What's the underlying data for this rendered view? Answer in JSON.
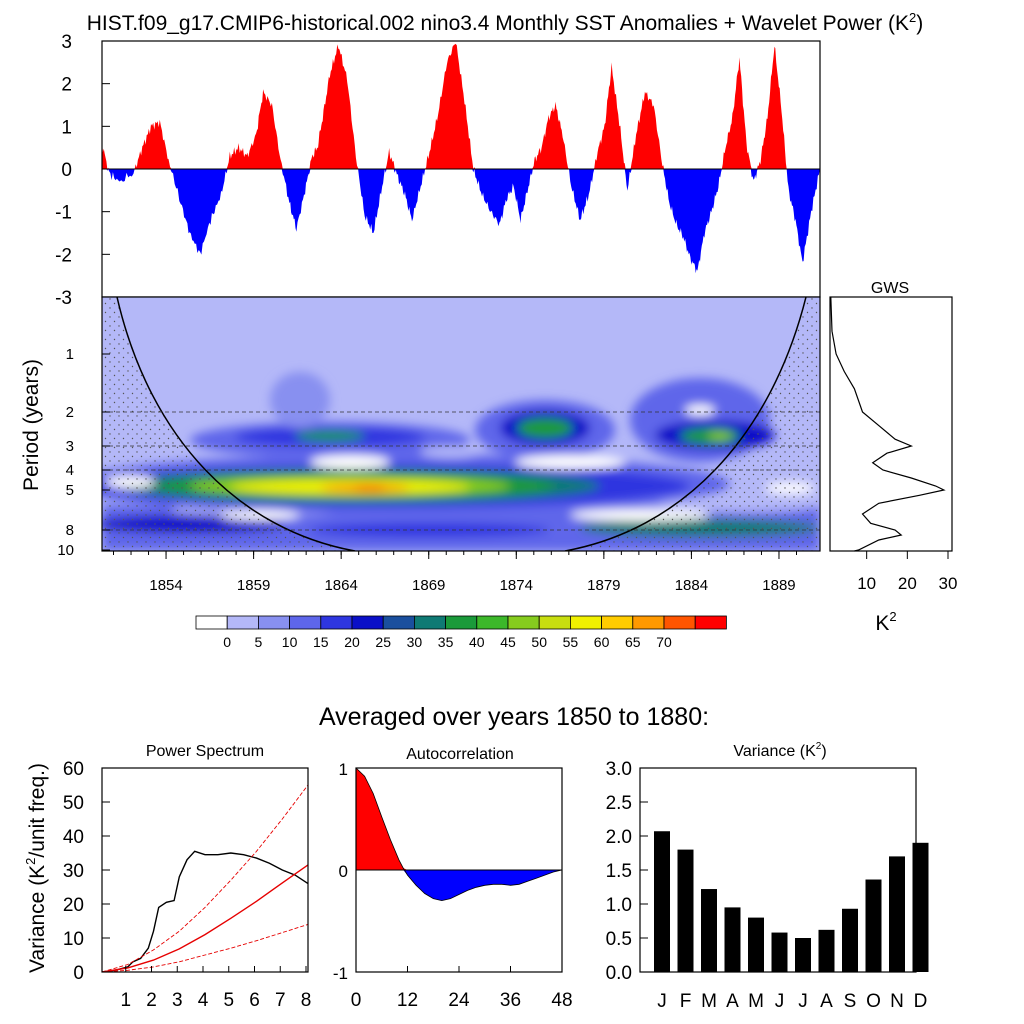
{
  "title": "HIST.f09_g17.CMIP6-historical.002 nino3.4 Monthly SST Anomalies + Wavelet Power (K",
  "title_sup": "2",
  "title_end": ")",
  "colors": {
    "positive": "#ff0000",
    "negative": "#0000ff",
    "bars": "#000000",
    "red_line": "#e60000"
  },
  "chart_data": [
    {
      "id": "sst_anomaly",
      "type": "area",
      "description_series": "nino3.4 monthly SST anomalies (K)",
      "ylim": [
        -3,
        3
      ],
      "xlim": [
        1850,
        1891
      ],
      "yticks": [
        3,
        2,
        1,
        0,
        -1,
        -2,
        -3
      ],
      "x": [
        1850,
        1850.4,
        1851,
        1851.8,
        1852.3,
        1852.8,
        1853.3,
        1853.8,
        1854.5,
        1855,
        1855.6,
        1856.2,
        1856.8,
        1857.3,
        1857.8,
        1858.3,
        1858.8,
        1859.2,
        1859.7,
        1860.2,
        1860.7,
        1861.1,
        1861.6,
        1862.0,
        1862.3,
        1862.6,
        1863.0,
        1863.5,
        1864.0,
        1864.5,
        1865.0,
        1865.5,
        1866.0,
        1866.4,
        1866.9,
        1867.3,
        1867.7,
        1868.2,
        1868.7,
        1869.2,
        1869.7,
        1870.2,
        1870.7,
        1871.2,
        1871.7,
        1872.2,
        1872.7,
        1873.1,
        1873.5,
        1873.9,
        1874.3,
        1874.7,
        1875.1,
        1875.5,
        1875.9,
        1876.3,
        1876.8,
        1877.3,
        1877.8,
        1878.3,
        1878.7,
        1879.1,
        1879.6,
        1880.0,
        1880.5,
        1881.0,
        1881.5,
        1882.0,
        1882.4,
        1882.8,
        1883.2,
        1883.6,
        1884.0,
        1884.4,
        1884.8,
        1885.2,
        1885.6,
        1886.0,
        1886.4,
        1886.8,
        1887.2,
        1887.6,
        1888.0,
        1888.4,
        1888.8,
        1889.2,
        1889.6,
        1890.0,
        1890.5,
        1891
      ],
      "values": [
        0.6,
        -0.1,
        -0.3,
        -0.1,
        0.5,
        1.0,
        1.1,
        0.2,
        -0.8,
        -1.5,
        -2.0,
        -1.2,
        -0.6,
        0.3,
        0.5,
        0.3,
        0.8,
        1.8,
        1.5,
        0.2,
        -0.8,
        -1.4,
        -0.5,
        0.3,
        0.5,
        1.2,
        2.2,
        2.9,
        2.1,
        0.3,
        -1.1,
        -1.5,
        -0.4,
        0.4,
        -0.2,
        -0.6,
        -1.2,
        -0.4,
        0.4,
        1.3,
        2.5,
        3.0,
        1.6,
        0.0,
        -0.6,
        -1.0,
        -1.3,
        -0.7,
        -0.4,
        -1.2,
        -0.5,
        0.2,
        0.5,
        1.2,
        1.5,
        0.8,
        -0.4,
        -1.2,
        -0.6,
        0.4,
        1.0,
        2.4,
        0.9,
        -0.5,
        0.8,
        1.8,
        1.5,
        0.1,
        -0.8,
        -1.3,
        -1.6,
        -2.1,
        -2.4,
        -1.5,
        -1.0,
        -0.4,
        0.5,
        1.2,
        2.6,
        0.6,
        -0.3,
        0.2,
        1.2,
        2.9,
        1.4,
        -0.5,
        -1.2,
        -2.2,
        -1.0,
        0.0
      ]
    },
    {
      "id": "wavelet_power",
      "type": "heatmap",
      "ylabel": "Period (years)",
      "yticks": [
        1,
        2,
        3,
        4,
        5,
        8,
        10
      ],
      "xticks": [
        1854,
        1859,
        1864,
        1869,
        1874,
        1879,
        1884,
        1889
      ],
      "xlim": [
        1850,
        1891
      ],
      "ylim_period": [
        0.5,
        10.5
      ],
      "colorbar_ticks": [
        0,
        5,
        10,
        15,
        20,
        25,
        30,
        35,
        40,
        45,
        50,
        55,
        60,
        65,
        70
      ],
      "colorbar_colors": [
        "#ffffff",
        "#b4b8f8",
        "#8890f0",
        "#5e66ea",
        "#2e36e0",
        "#0a10c8",
        "#1a4f9e",
        "#0f7a74",
        "#1a9a3a",
        "#3cb82a",
        "#86cc1e",
        "#c8de10",
        "#f0f000",
        "#ffcc00",
        "#ff9900",
        "#ff5500",
        "#ff0000"
      ],
      "peak_power": 70,
      "peak_period": 5,
      "peak_year": 1864
    },
    {
      "id": "gws",
      "type": "line",
      "title": "GWS",
      "xlabel": "K",
      "xlabel_sup": "2",
      "xticks": [
        10,
        20,
        30
      ],
      "xlim": [
        0,
        30
      ],
      "period": [
        0.5,
        0.8,
        1.0,
        1.3,
        1.6,
        2.0,
        2.4,
        2.8,
        3.0,
        3.3,
        3.7,
        4.0,
        4.4,
        4.8,
        5.0,
        5.4,
        6.0,
        6.8,
        7.5,
        8.0,
        8.5,
        9.0,
        10.0,
        10.5
      ],
      "values": [
        0.2,
        0.5,
        1.5,
        3.5,
        6.0,
        8.0,
        12.0,
        16.0,
        20.0,
        14.0,
        10.5,
        13.0,
        20.0,
        26.0,
        28.0,
        22.0,
        12.0,
        8.0,
        10.0,
        16.0,
        17.5,
        12.0,
        7.0,
        6.0
      ]
    },
    {
      "id": "power_spectrum",
      "type": "line",
      "title": "Power Spectrum",
      "ylabel": "Variance (K",
      "ylabel_sup": "2",
      "ylabel_end": "/unit freq.)",
      "xticks": [
        1,
        2,
        3,
        4,
        5,
        6,
        7,
        8
      ],
      "yticks": [
        0,
        10,
        20,
        30,
        40,
        50,
        60
      ],
      "xlim": [
        0,
        8
      ],
      "ylim": [
        0,
        60
      ],
      "series": [
        {
          "name": "spectrum",
          "color": "#000000",
          "x": [
            0.0,
            0.5,
            1.0,
            1.2,
            1.5,
            1.8,
            2.0,
            2.2,
            2.5,
            2.8,
            3.0,
            3.3,
            3.6,
            4.0,
            4.5,
            5.0,
            5.5,
            6.0,
            6.5,
            7.0,
            7.5,
            8.0
          ],
          "values": [
            0.0,
            0.5,
            1.5,
            3.0,
            4.0,
            7.0,
            12.0,
            19.0,
            20.5,
            21.0,
            28.0,
            33.0,
            35.5,
            34.5,
            34.5,
            35.0,
            34.5,
            33.5,
            32.0,
            30.0,
            28.5,
            26.0
          ]
        },
        {
          "name": "red_noise",
          "color": "#e60000",
          "style": "solid",
          "x": [
            0,
            1,
            2,
            3,
            4,
            5,
            6,
            7,
            8
          ],
          "values": [
            0,
            1.2,
            3.5,
            6.8,
            11.0,
            15.8,
            20.8,
            26.2,
            31.5
          ]
        },
        {
          "name": "upper_confidence",
          "color": "#e60000",
          "style": "dashed",
          "x": [
            0,
            1,
            2,
            3,
            4,
            5,
            6,
            7,
            8
          ],
          "values": [
            0,
            2.2,
            6.5,
            12.0,
            19.0,
            27.0,
            35.5,
            45.0,
            55.0
          ]
        },
        {
          "name": "lower_confidence",
          "color": "#e60000",
          "style": "dashed",
          "x": [
            0,
            1,
            2,
            3,
            4,
            5,
            6,
            7,
            8
          ],
          "values": [
            0,
            0.5,
            1.5,
            3.0,
            5.0,
            7.0,
            9.2,
            11.6,
            14.0
          ]
        }
      ]
    },
    {
      "id": "autocorrelation",
      "type": "area",
      "title": "Autocorrelation",
      "xticks": [
        0,
        12,
        24,
        36,
        48
      ],
      "yticks": [
        1,
        0,
        -1
      ],
      "xlim": [
        0,
        48
      ],
      "ylim": [
        -1,
        1
      ],
      "x": [
        0,
        2,
        4,
        6,
        8,
        10,
        11,
        12,
        14,
        16,
        18,
        20,
        22,
        24,
        26,
        28,
        30,
        32,
        34,
        36,
        38,
        40,
        42,
        44,
        46,
        48
      ],
      "values": [
        1.0,
        0.92,
        0.75,
        0.52,
        0.3,
        0.1,
        0.02,
        -0.05,
        -0.15,
        -0.23,
        -0.28,
        -0.3,
        -0.28,
        -0.24,
        -0.2,
        -0.17,
        -0.15,
        -0.14,
        -0.14,
        -0.15,
        -0.14,
        -0.11,
        -0.08,
        -0.05,
        -0.02,
        0.0
      ]
    },
    {
      "id": "variance",
      "type": "bar",
      "title": "Variance (K",
      "title_sup": "2",
      "title_end": ")",
      "categories": [
        "J",
        "F",
        "M",
        "A",
        "M",
        "J",
        "J",
        "A",
        "S",
        "O",
        "N",
        "D"
      ],
      "values": [
        2.07,
        1.8,
        1.22,
        0.95,
        0.8,
        0.58,
        0.5,
        0.62,
        0.93,
        1.36,
        1.7,
        1.9
      ],
      "yticks": [
        "3.0",
        "2.5",
        "2.0",
        "1.5",
        "1.0",
        "0.5",
        "0.0"
      ],
      "ylim": [
        0,
        3
      ]
    }
  ],
  "subtitle": "Averaged over years 1850 to 1880:"
}
